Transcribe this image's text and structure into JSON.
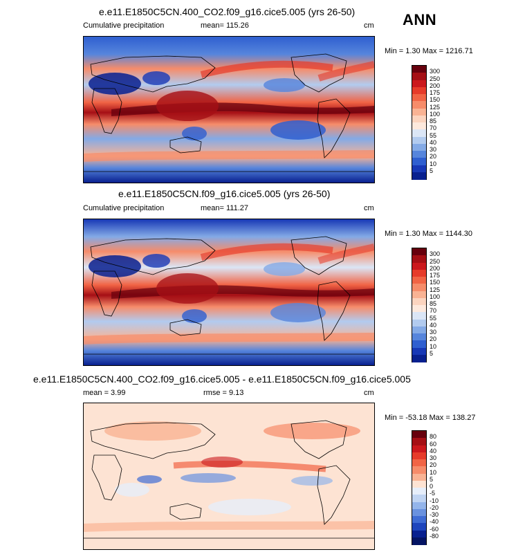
{
  "season": "ANN",
  "panels": [
    {
      "id": "top",
      "title": "e.e11.E1850C5CN.400_CO2.f09_g16.cice5.005 (yrs 26-50)",
      "left_label": "Cumulative precipitation",
      "mean_label": "mean=  115.26",
      "unit": "cm",
      "minmax": "Min =   1.30 Max = 1216.71",
      "colorbar_labels": [
        "300",
        "250",
        "200",
        "175",
        "150",
        "125",
        "100",
        "85",
        "70",
        "55",
        "40",
        "30",
        "20",
        "10",
        "5"
      ]
    },
    {
      "id": "middle",
      "title": "e.e11.E1850C5CN.f09_g16.cice5.005 (yrs 26-50)",
      "left_label": "Cumulative precipitation",
      "mean_label": "mean=  111.27",
      "unit": "cm",
      "minmax": "Min =   1.30 Max = 1144.30",
      "colorbar_labels": [
        "300",
        "250",
        "200",
        "175",
        "150",
        "125",
        "100",
        "85",
        "70",
        "55",
        "40",
        "30",
        "20",
        "10",
        "5"
      ]
    },
    {
      "id": "bottom",
      "title": "e.e11.E1850C5CN.400_CO2.f09_g16.cice5.005 - e.e11.E1850C5CN.f09_g16.cice5.005",
      "left_label": "mean =    3.99",
      "mean_label": "rmse =   9.13",
      "unit": "cm",
      "minmax": "Min = -53.18 Max = 138.27",
      "colorbar_labels": [
        "80",
        "60",
        "40",
        "30",
        "20",
        "10",
        "5",
        "0",
        "-5",
        "-10",
        "-20",
        "-30",
        "-40",
        "-60",
        "-80"
      ]
    }
  ],
  "colors": {
    "precip_scale": [
      "#67000d",
      "#a50f15",
      "#cb181d",
      "#e63b2a",
      "#f16445",
      "#f68c6a",
      "#f9b394",
      "#fbd4bf",
      "#fde9dd",
      "#dbe6f6",
      "#b2cbef",
      "#84aae6",
      "#5685dc",
      "#2f5fd0",
      "#1738b6",
      "#08208f"
    ],
    "diff_scale": [
      "#67000d",
      "#a50f15",
      "#cb181d",
      "#e63b2a",
      "#f16445",
      "#f68c6a",
      "#f9b394",
      "#fde3d3",
      "#e6eefa",
      "#c0d4f2",
      "#94b5ea",
      "#6a92df",
      "#3f6cd4",
      "#1e45bd",
      "#08208f",
      "#041463"
    ]
  }
}
